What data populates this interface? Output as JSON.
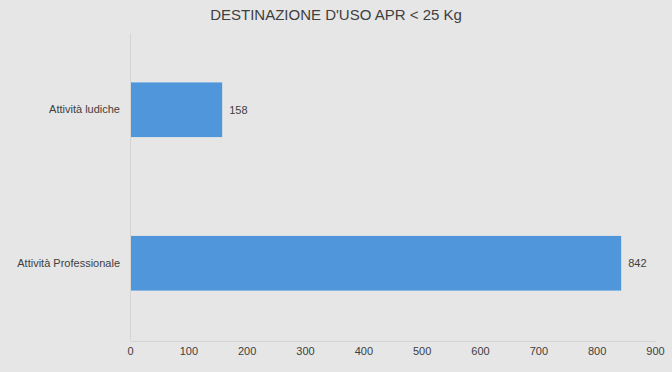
{
  "chart_data": {
    "type": "bar",
    "orientation": "horizontal",
    "title": "DESTINAZIONE D'USO APR < 25 Kg",
    "categories": [
      "Attività ludiche",
      "Attività Professionale"
    ],
    "values": [
      158,
      842
    ],
    "color": "#4f97da",
    "xlim": [
      0,
      900
    ],
    "xticks": [
      0,
      100,
      200,
      300,
      400,
      500,
      600,
      700,
      800,
      900
    ],
    "grid": false,
    "data_labels": true
  }
}
